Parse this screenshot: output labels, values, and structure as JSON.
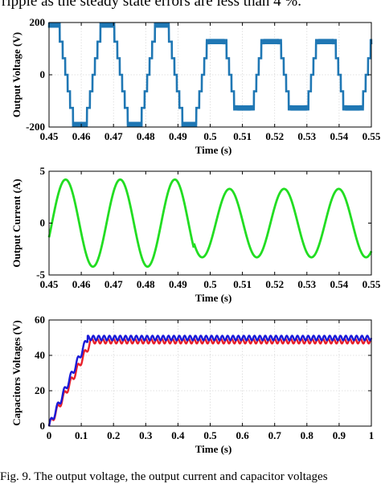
{
  "page": {
    "top_text": "ripple as the steady state errors are less than 4 %.",
    "bottom_text": "Fig. 9.  The output voltage, the output current and capacitor voltages"
  },
  "colors": {
    "voltage": "#1f77b4",
    "current": "#22dd22",
    "cap_blue": "#1a1ad8",
    "cap_red": "#e8202a"
  },
  "chart_data": [
    {
      "type": "line",
      "description": "Output voltage: 7-level staircase waveform, period ~0.017 s",
      "xlabel": "Time (s)",
      "ylabel": "Output Voltage (V)",
      "xlim": [
        0.45,
        0.55
      ],
      "ylim": [
        -200,
        200
      ],
      "xticks": [
        "0.45",
        "0.46",
        "0.47",
        "0.48",
        "0.49",
        "0.5",
        "0.51",
        "0.52",
        "0.53",
        "0.54",
        "0.55"
      ],
      "yticks": [
        "-200",
        "0",
        "200"
      ],
      "grid": true,
      "series": [
        {
          "color": "#1f77b4",
          "levels": [
            -190,
            -127,
            -63,
            0,
            63,
            127,
            190
          ],
          "amplitude_first_cycles": 190,
          "amplitude_later_cycles": 127,
          "frequency_hz": 59
        }
      ]
    },
    {
      "type": "line",
      "description": "Output current: sinusoid",
      "xlabel": "Time (s)",
      "ylabel": "Output Current (A)",
      "xlim": [
        0.45,
        0.55
      ],
      "ylim": [
        -5,
        5
      ],
      "xticks": [
        "0.45",
        "0.46",
        "0.47",
        "0.48",
        "0.49",
        "0.5",
        "0.51",
        "0.52",
        "0.53",
        "0.54",
        "0.55"
      ],
      "yticks": [
        "-5",
        "0",
        "5"
      ],
      "grid": false,
      "series": [
        {
          "color": "#22dd22",
          "x": [
            0.45,
            0.455,
            0.4635,
            0.472,
            0.4805,
            0.489,
            0.4975,
            0.506,
            0.5145,
            0.523,
            0.5315,
            0.54,
            0.5485,
            0.55
          ],
          "y": [
            -1.7,
            4.2,
            -4.2,
            4.2,
            -4.2,
            4.2,
            -3.9,
            3.3,
            -3.3,
            3.3,
            -3.3,
            3.3,
            -3.3,
            -1.5
          ]
        }
      ]
    },
    {
      "type": "line",
      "description": "Capacitor voltages: ramp to ~48-50 V by 0.12 s with small ripple",
      "xlabel": "Time (s)",
      "ylabel": "Capacitors Voltages (V)",
      "xlim": [
        0,
        1
      ],
      "ylim": [
        0,
        60
      ],
      "xticks": [
        "0",
        "0.1",
        "0.2",
        "0.3",
        "0.4",
        "0.5",
        "0.6",
        "0.7",
        "0.8",
        "0.9",
        "1"
      ],
      "yticks": [
        "0",
        "20",
        "40",
        "60"
      ],
      "grid": true,
      "series": [
        {
          "color": "#1a1ad8",
          "x": [
            0,
            0.12,
            0.15,
            1
          ],
          "y": [
            0,
            50,
            50.5,
            49.5
          ]
        },
        {
          "color": "#e8202a",
          "x": [
            0,
            0.13,
            0.16,
            1
          ],
          "y": [
            0,
            48,
            48,
            48
          ]
        }
      ]
    }
  ]
}
